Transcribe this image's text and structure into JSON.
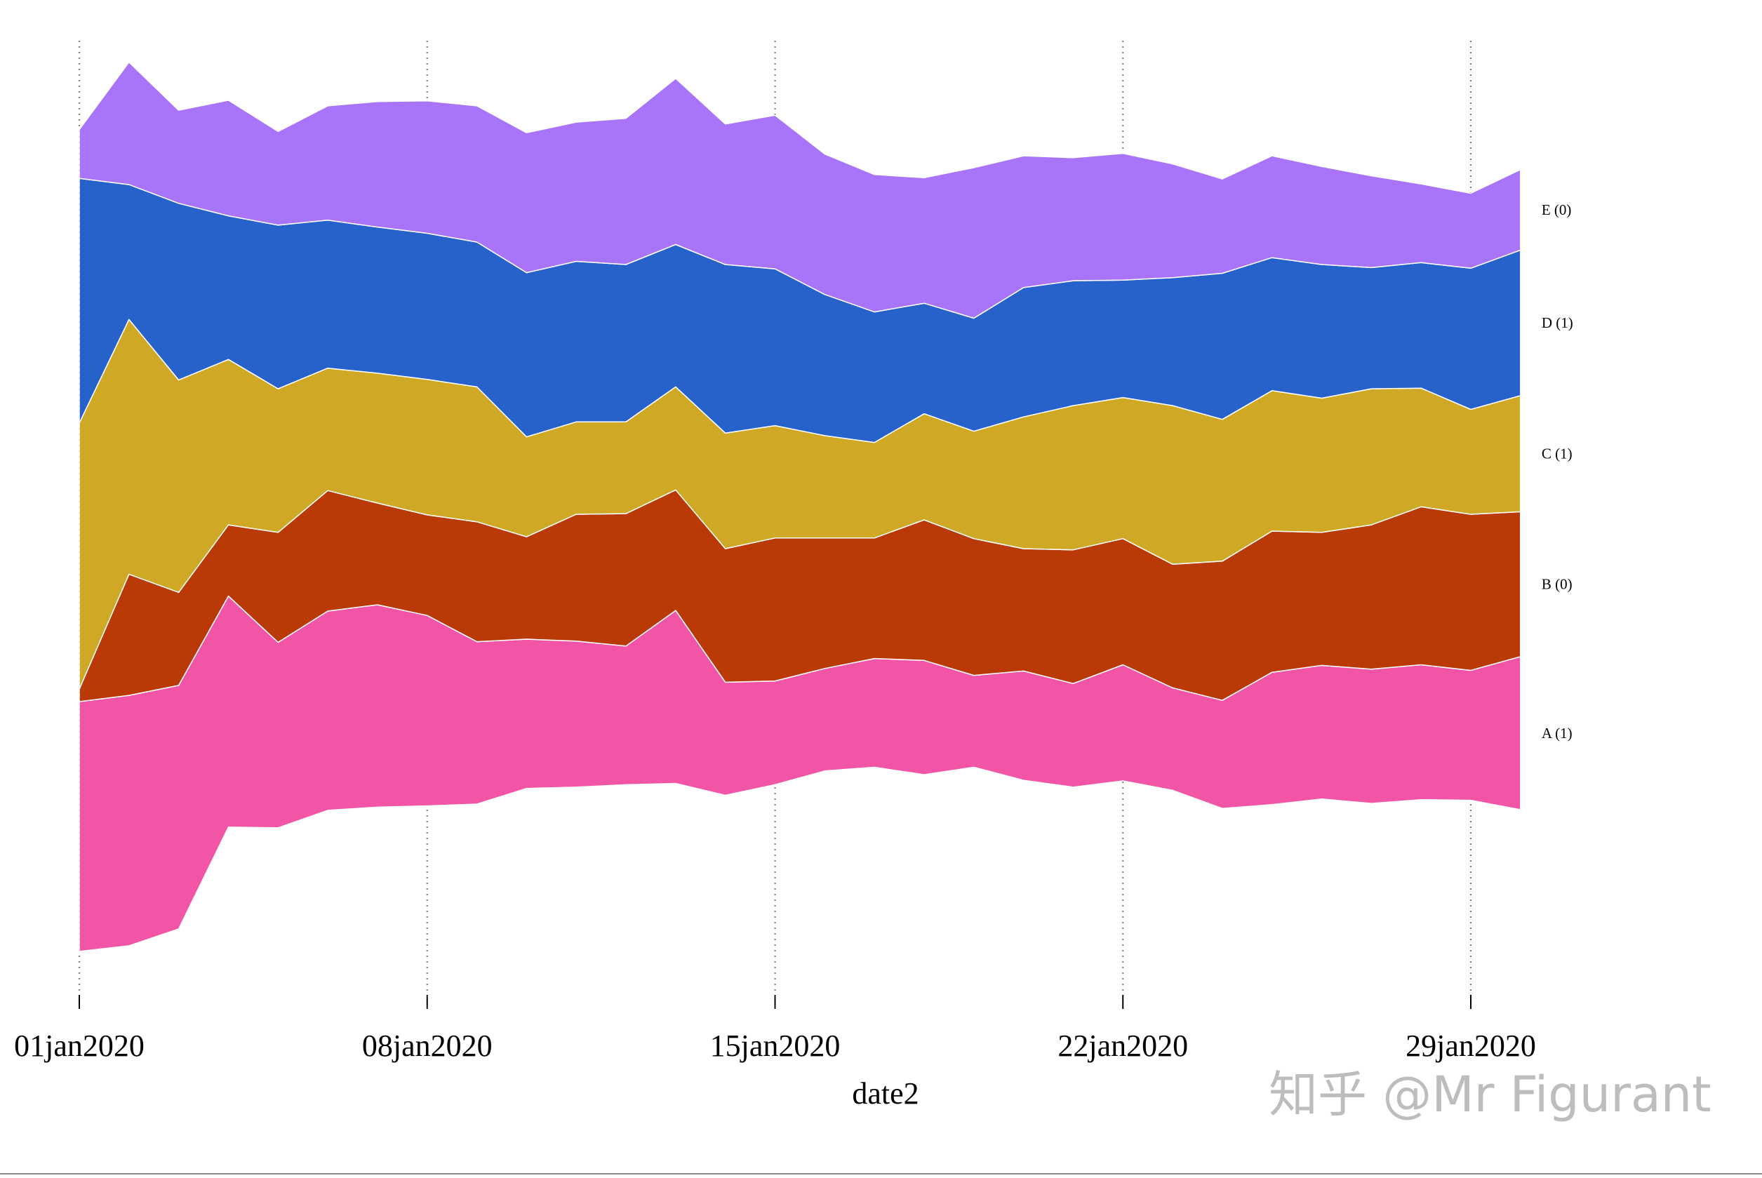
{
  "chart_data": {
    "type": "streamgraph",
    "title": "",
    "xlabel": "date2",
    "ylabel": "",
    "grid": "vertical dotted lines at x tick positions",
    "legend": "series labels at right end of each band",
    "x_ticks": [
      {
        "day": 1,
        "label": "01jan2020"
      },
      {
        "day": 8,
        "label": "08jan2020"
      },
      {
        "day": 15,
        "label": "15jan2020"
      },
      {
        "day": 22,
        "label": "22jan2020"
      },
      {
        "day": 29,
        "label": "29jan2020"
      }
    ],
    "x": [
      1,
      2,
      3,
      4,
      5,
      6,
      7,
      8,
      9,
      10,
      11,
      12,
      13,
      14,
      15,
      16,
      17,
      18,
      19,
      20,
      21,
      22,
      23,
      24,
      25,
      26,
      27,
      28,
      29,
      30
    ],
    "baseline": [
      -40.0,
      -39.1,
      -36.4,
      -20.1,
      -20.2,
      -17.4,
      -16.9,
      -16.7,
      -16.4,
      -13.9,
      -13.7,
      -13.3,
      -13.1,
      -15.0,
      -13.3,
      -11.1,
      -10.5,
      -11.7,
      -10.5,
      -12.6,
      -13.7,
      -12.7,
      -14.2,
      -17.1,
      -16.5,
      -15.6,
      -16.3,
      -15.7,
      -15.8,
      -17.3
    ],
    "series": [
      {
        "name": "A",
        "label": "A (1)",
        "color": "#F254A6",
        "values": [
          40.0,
          40.1,
          39.0,
          37.0,
          29.7,
          31.9,
          32.4,
          30.5,
          26.0,
          23.9,
          23.4,
          22.2,
          27.7,
          18.1,
          16.6,
          16.4,
          17.4,
          18.3,
          14.7,
          17.5,
          16.6,
          18.6,
          16.4,
          17.3,
          21.2,
          21.4,
          21.5,
          21.6,
          20.8,
          24.5
        ]
      },
      {
        "name": "B",
        "label": "B (0)",
        "color": "#BA3A07",
        "values": [
          2.0,
          19.4,
          14.9,
          11.4,
          17.6,
          19.3,
          16.3,
          16.1,
          19.2,
          16.4,
          20.3,
          21.2,
          19.3,
          21.4,
          22.9,
          20.9,
          19.3,
          22.5,
          21.9,
          19.6,
          21.4,
          20.2,
          19.8,
          22.3,
          22.6,
          21.3,
          23.1,
          25.3,
          25.0,
          23.2
        ]
      },
      {
        "name": "C",
        "label": "C (1)",
        "color": "#CFA926",
        "values": [
          42.6,
          40.8,
          34.0,
          26.5,
          23.0,
          19.6,
          20.8,
          21.7,
          21.6,
          16.0,
          14.8,
          14.7,
          16.5,
          18.5,
          18.0,
          16.4,
          15.3,
          17.0,
          17.2,
          21.1,
          23.1,
          22.6,
          25.4,
          22.7,
          22.5,
          21.5,
          21.8,
          19.0,
          16.8,
          18.6
        ]
      },
      {
        "name": "D",
        "label": "D (1)",
        "color": "#2762CB",
        "values": [
          39.2,
          21.6,
          28.3,
          23.0,
          26.2,
          23.7,
          23.4,
          23.4,
          23.2,
          26.3,
          25.7,
          25.2,
          22.8,
          27.0,
          25.1,
          22.6,
          20.9,
          17.7,
          18.1,
          20.7,
          20.0,
          18.8,
          20.5,
          23.4,
          21.3,
          21.4,
          19.4,
          20.1,
          22.6,
          23.3
        ]
      },
      {
        "name": "E",
        "label": "E (0)",
        "color": "#A874FA",
        "values": [
          7.8,
          19.6,
          14.9,
          18.5,
          15.0,
          18.3,
          20.1,
          21.2,
          21.8,
          22.4,
          22.3,
          23.4,
          26.6,
          22.5,
          24.6,
          22.5,
          22.0,
          20.1,
          24.1,
          21.1,
          19.7,
          20.3,
          18.2,
          15.1,
          16.3,
          15.7,
          14.7,
          12.6,
          12.0,
          12.9
        ]
      }
    ]
  },
  "watermark": "知乎 @Mr Figurant"
}
